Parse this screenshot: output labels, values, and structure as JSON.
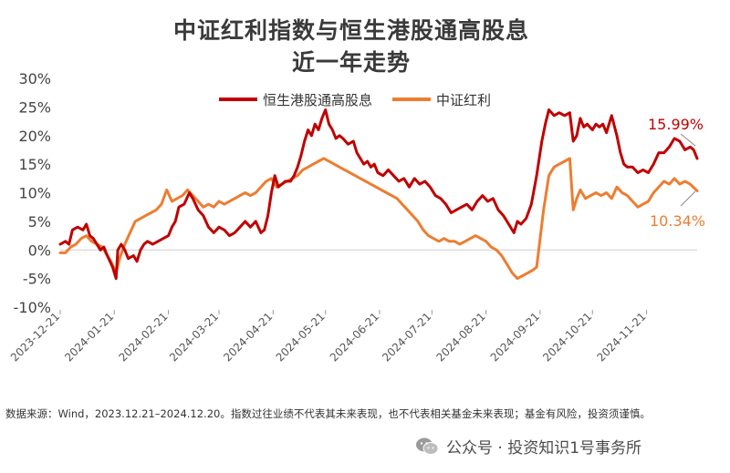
{
  "chart_data": {
    "type": "line",
    "title": "中证红利指数与恒生港股通高股息",
    "subtitle": "近一年走势",
    "y_unit": "%",
    "ylim": [
      -10,
      30
    ],
    "y_ticks": [
      "30%",
      "25%",
      "20%",
      "15%",
      "10%",
      "5%",
      "0%",
      "-5%",
      "-10%"
    ],
    "x_ticks": [
      "2023-12-21",
      "2024-01-21",
      "2024-02-21",
      "2024-03-21",
      "2024-04-21",
      "2024-05-21",
      "2024-06-21",
      "2024-07-21",
      "2024-08-21",
      "2024-09-21",
      "2024-10-21",
      "2024-11-21"
    ],
    "x_range": [
      "2023-12-21",
      "2024-12-20"
    ],
    "grid": false,
    "legend_position": "top",
    "series": [
      {
        "name": "恒生港股通高股息",
        "color": "#C00000",
        "end_label": "15.99%",
        "points": [
          [
            "2023-12-21",
            1
          ],
          [
            "2023-12-24",
            1.5
          ],
          [
            "2023-12-26",
            1
          ],
          [
            "2023-12-28",
            3.5
          ],
          [
            "2023-12-31",
            4
          ],
          [
            "2024-01-03",
            3.5
          ],
          [
            "2024-01-05",
            4.5
          ],
          [
            "2024-01-07",
            2.5
          ],
          [
            "2024-01-09",
            2
          ],
          [
            "2024-01-11",
            1
          ],
          [
            "2024-01-13",
            0
          ],
          [
            "2024-01-15",
            0.5
          ],
          [
            "2024-01-17",
            -1
          ],
          [
            "2024-01-20",
            -3
          ],
          [
            "2024-01-22",
            -5
          ],
          [
            "2024-01-23",
            0
          ],
          [
            "2024-01-25",
            1
          ],
          [
            "2024-01-27",
            0
          ],
          [
            "2024-01-29",
            -1.5
          ],
          [
            "2024-02-01",
            -1
          ],
          [
            "2024-02-03",
            -2
          ],
          [
            "2024-02-05",
            0
          ],
          [
            "2024-02-07",
            1
          ],
          [
            "2024-02-09",
            1.5
          ],
          [
            "2024-02-12",
            1
          ],
          [
            "2024-02-15",
            1.5
          ],
          [
            "2024-02-18",
            2
          ],
          [
            "2024-02-21",
            2.5
          ],
          [
            "2024-02-23",
            4
          ],
          [
            "2024-02-25",
            5
          ],
          [
            "2024-02-27",
            7.5
          ],
          [
            "2024-03-01",
            8
          ],
          [
            "2024-03-04",
            10
          ],
          [
            "2024-03-06",
            9
          ],
          [
            "2024-03-09",
            7
          ],
          [
            "2024-03-12",
            6
          ],
          [
            "2024-03-15",
            4
          ],
          [
            "2024-03-18",
            3
          ],
          [
            "2024-03-21",
            4
          ],
          [
            "2024-03-24",
            3.5
          ],
          [
            "2024-03-27",
            2.5
          ],
          [
            "2024-03-30",
            3
          ],
          [
            "2024-04-02",
            4
          ],
          [
            "2024-04-05",
            5
          ],
          [
            "2024-04-08",
            4
          ],
          [
            "2024-04-11",
            5
          ],
          [
            "2024-04-14",
            3
          ],
          [
            "2024-04-16",
            3.5
          ],
          [
            "2024-04-18",
            6
          ],
          [
            "2024-04-20",
            10
          ],
          [
            "2024-04-22",
            13
          ],
          [
            "2024-04-24",
            11
          ],
          [
            "2024-04-26",
            11.5
          ],
          [
            "2024-04-28",
            12
          ],
          [
            "2024-05-01",
            12
          ],
          [
            "2024-05-03",
            13
          ],
          [
            "2024-05-05",
            14.5
          ],
          [
            "2024-05-07",
            16.5
          ],
          [
            "2024-05-09",
            19
          ],
          [
            "2024-05-11",
            21
          ],
          [
            "2024-05-13",
            20
          ],
          [
            "2024-05-15",
            22
          ],
          [
            "2024-05-17",
            21
          ],
          [
            "2024-05-19",
            23
          ],
          [
            "2024-05-21",
            24.5
          ],
          [
            "2024-05-23",
            22
          ],
          [
            "2024-05-25",
            21
          ],
          [
            "2024-05-27",
            19.5
          ],
          [
            "2024-05-29",
            20
          ],
          [
            "2024-05-31",
            19.5
          ],
          [
            "2024-06-03",
            18.5
          ],
          [
            "2024-06-06",
            19
          ],
          [
            "2024-06-08",
            17
          ],
          [
            "2024-06-10",
            16
          ],
          [
            "2024-06-12",
            15
          ],
          [
            "2024-06-14",
            15.5
          ],
          [
            "2024-06-16",
            14.5
          ],
          [
            "2024-06-18",
            15
          ],
          [
            "2024-06-20",
            13.5
          ],
          [
            "2024-06-23",
            13
          ],
          [
            "2024-06-26",
            14
          ],
          [
            "2024-06-29",
            13
          ],
          [
            "2024-07-02",
            12
          ],
          [
            "2024-07-05",
            12.5
          ],
          [
            "2024-07-08",
            11
          ],
          [
            "2024-07-11",
            12.5
          ],
          [
            "2024-07-14",
            11.5
          ],
          [
            "2024-07-17",
            12
          ],
          [
            "2024-07-20",
            11
          ],
          [
            "2024-07-23",
            9.5
          ],
          [
            "2024-07-26",
            9
          ],
          [
            "2024-07-29",
            8
          ],
          [
            "2024-08-01",
            6.5
          ],
          [
            "2024-08-04",
            7
          ],
          [
            "2024-08-07",
            7.5
          ],
          [
            "2024-08-10",
            8
          ],
          [
            "2024-08-13",
            7
          ],
          [
            "2024-08-16",
            8.5
          ],
          [
            "2024-08-19",
            9.5
          ],
          [
            "2024-08-22",
            8.5
          ],
          [
            "2024-08-25",
            9
          ],
          [
            "2024-08-28",
            7
          ],
          [
            "2024-08-31",
            6
          ],
          [
            "2024-09-03",
            4.5
          ],
          [
            "2024-09-06",
            3
          ],
          [
            "2024-09-08",
            5
          ],
          [
            "2024-09-10",
            4.5
          ],
          [
            "2024-09-13",
            5.5
          ],
          [
            "2024-09-16",
            8
          ],
          [
            "2024-09-19",
            13
          ],
          [
            "2024-09-22",
            19
          ],
          [
            "2024-09-24",
            22
          ],
          [
            "2024-09-26",
            24.5
          ],
          [
            "2024-09-29",
            23.5
          ],
          [
            "2024-10-02",
            24
          ],
          [
            "2024-10-05",
            23.5
          ],
          [
            "2024-10-08",
            24
          ],
          [
            "2024-10-10",
            19
          ],
          [
            "2024-10-12",
            20
          ],
          [
            "2024-10-14",
            23
          ],
          [
            "2024-10-16",
            21.5
          ],
          [
            "2024-10-18",
            22
          ],
          [
            "2024-10-21",
            21
          ],
          [
            "2024-10-23",
            22
          ],
          [
            "2024-10-25",
            21.5
          ],
          [
            "2024-10-27",
            22
          ],
          [
            "2024-10-29",
            20.5
          ],
          [
            "2024-11-01",
            23.5
          ],
          [
            "2024-11-04",
            20
          ],
          [
            "2024-11-06",
            17
          ],
          [
            "2024-11-08",
            15
          ],
          [
            "2024-11-10",
            14.5
          ],
          [
            "2024-11-13",
            14.5
          ],
          [
            "2024-11-16",
            13.5
          ],
          [
            "2024-11-19",
            14
          ],
          [
            "2024-11-22",
            13.5
          ],
          [
            "2024-11-25",
            15
          ],
          [
            "2024-11-28",
            17
          ],
          [
            "2024-12-01",
            17
          ],
          [
            "2024-12-04",
            18
          ],
          [
            "2024-12-07",
            19.5
          ],
          [
            "2024-12-10",
            19
          ],
          [
            "2024-12-13",
            17.5
          ],
          [
            "2024-12-16",
            18
          ],
          [
            "2024-12-18",
            17.5
          ],
          [
            "2024-12-20",
            15.99
          ]
        ]
      },
      {
        "name": "中证红利",
        "color": "#ED7D31",
        "end_label": "10.34%",
        "points": [
          [
            "2023-12-21",
            -0.5
          ],
          [
            "2023-12-24",
            -0.5
          ],
          [
            "2023-12-27",
            0.5
          ],
          [
            "2023-12-30",
            1
          ],
          [
            "2024-01-02",
            2
          ],
          [
            "2024-01-05",
            2.5
          ],
          [
            "2024-01-08",
            1.5
          ],
          [
            "2024-01-11",
            1
          ],
          [
            "2024-01-14",
            0.5
          ],
          [
            "2024-01-17",
            -1
          ],
          [
            "2024-01-19",
            -2
          ],
          [
            "2024-01-22",
            -4
          ],
          [
            "2024-01-24",
            -1.5
          ],
          [
            "2024-01-27",
            1
          ],
          [
            "2024-01-30",
            3
          ],
          [
            "2024-02-02",
            5
          ],
          [
            "2024-02-05",
            5.5
          ],
          [
            "2024-02-08",
            6
          ],
          [
            "2024-02-11",
            6.5
          ],
          [
            "2024-02-14",
            7
          ],
          [
            "2024-02-17",
            8
          ],
          [
            "2024-02-20",
            10.5
          ],
          [
            "2024-02-23",
            8.5
          ],
          [
            "2024-02-26",
            9
          ],
          [
            "2024-02-29",
            9.5
          ],
          [
            "2024-03-03",
            10.5
          ],
          [
            "2024-03-06",
            9.5
          ],
          [
            "2024-03-09",
            8.5
          ],
          [
            "2024-03-12",
            7.5
          ],
          [
            "2024-03-15",
            8
          ],
          [
            "2024-03-18",
            7.5
          ],
          [
            "2024-03-21",
            8.5
          ],
          [
            "2024-03-24",
            8
          ],
          [
            "2024-03-27",
            8.5
          ],
          [
            "2024-03-30",
            9
          ],
          [
            "2024-04-02",
            9.5
          ],
          [
            "2024-04-05",
            10
          ],
          [
            "2024-04-08",
            9.5
          ],
          [
            "2024-04-11",
            10
          ],
          [
            "2024-04-14",
            11
          ],
          [
            "2024-04-17",
            12
          ],
          [
            "2024-04-20",
            12.5
          ],
          [
            "2024-04-23",
            11
          ],
          [
            "2024-04-26",
            11.5
          ],
          [
            "2024-04-29",
            12
          ],
          [
            "2024-05-02",
            12.5
          ],
          [
            "2024-05-05",
            13
          ],
          [
            "2024-05-08",
            14
          ],
          [
            "2024-05-11",
            14.5
          ],
          [
            "2024-05-14",
            15
          ],
          [
            "2024-05-17",
            15.5
          ],
          [
            "2024-05-20",
            16
          ],
          [
            "2024-05-23",
            15.5
          ],
          [
            "2024-05-26",
            15
          ],
          [
            "2024-05-29",
            14.5
          ],
          [
            "2024-06-01",
            14
          ],
          [
            "2024-06-04",
            13.5
          ],
          [
            "2024-06-07",
            13
          ],
          [
            "2024-06-10",
            12.5
          ],
          [
            "2024-06-13",
            12
          ],
          [
            "2024-06-16",
            11.5
          ],
          [
            "2024-06-19",
            11
          ],
          [
            "2024-06-22",
            10.5
          ],
          [
            "2024-06-25",
            10
          ],
          [
            "2024-06-28",
            9.5
          ],
          [
            "2024-07-01",
            9
          ],
          [
            "2024-07-04",
            8
          ],
          [
            "2024-07-07",
            7
          ],
          [
            "2024-07-10",
            6
          ],
          [
            "2024-07-13",
            5
          ],
          [
            "2024-07-16",
            3.5
          ],
          [
            "2024-07-19",
            2.5
          ],
          [
            "2024-07-22",
            2
          ],
          [
            "2024-07-25",
            1.5
          ],
          [
            "2024-07-28",
            2
          ],
          [
            "2024-07-31",
            1.5
          ],
          [
            "2024-08-03",
            1.5
          ],
          [
            "2024-08-06",
            1
          ],
          [
            "2024-08-09",
            1.5
          ],
          [
            "2024-08-12",
            2
          ],
          [
            "2024-08-15",
            2.5
          ],
          [
            "2024-08-18",
            2
          ],
          [
            "2024-08-21",
            1.5
          ],
          [
            "2024-08-24",
            0.5
          ],
          [
            "2024-08-27",
            0
          ],
          [
            "2024-08-30",
            -1
          ],
          [
            "2024-09-02",
            -2.5
          ],
          [
            "2024-09-05",
            -4
          ],
          [
            "2024-09-08",
            -5
          ],
          [
            "2024-09-11",
            -4.5
          ],
          [
            "2024-09-14",
            -4
          ],
          [
            "2024-09-17",
            -3.5
          ],
          [
            "2024-09-19",
            -3
          ],
          [
            "2024-09-21",
            2
          ],
          [
            "2024-09-23",
            7
          ],
          [
            "2024-09-26",
            13
          ],
          [
            "2024-09-29",
            14.5
          ],
          [
            "2024-10-02",
            15
          ],
          [
            "2024-10-05",
            15.5
          ],
          [
            "2024-10-08",
            16
          ],
          [
            "2024-10-10",
            7
          ],
          [
            "2024-10-12",
            9
          ],
          [
            "2024-10-14",
            10.5
          ],
          [
            "2024-10-17",
            9
          ],
          [
            "2024-10-20",
            9.5
          ],
          [
            "2024-10-23",
            10
          ],
          [
            "2024-10-26",
            9.5
          ],
          [
            "2024-10-29",
            10
          ],
          [
            "2024-11-01",
            9
          ],
          [
            "2024-11-04",
            11
          ],
          [
            "2024-11-07",
            10
          ],
          [
            "2024-11-10",
            9.5
          ],
          [
            "2024-11-13",
            8.5
          ],
          [
            "2024-11-16",
            7.5
          ],
          [
            "2024-11-19",
            8
          ],
          [
            "2024-11-22",
            8.5
          ],
          [
            "2024-11-25",
            10
          ],
          [
            "2024-11-28",
            11
          ],
          [
            "2024-12-01",
            12
          ],
          [
            "2024-12-04",
            11.5
          ],
          [
            "2024-12-07",
            12.5
          ],
          [
            "2024-12-10",
            11.5
          ],
          [
            "2024-12-13",
            12
          ],
          [
            "2024-12-16",
            11.5
          ],
          [
            "2024-12-20",
            10.34
          ]
        ]
      }
    ]
  },
  "footnote": "数据来源：Wind，2023.12.21–2024.12.20。指数过往业绩不代表其未来表现，也不代表相关基金未来表现；基金有风险，投资须谨慎。",
  "watermark": {
    "icon": "wechat-icon",
    "text": "公众号 · 投资知识1号事务所"
  }
}
